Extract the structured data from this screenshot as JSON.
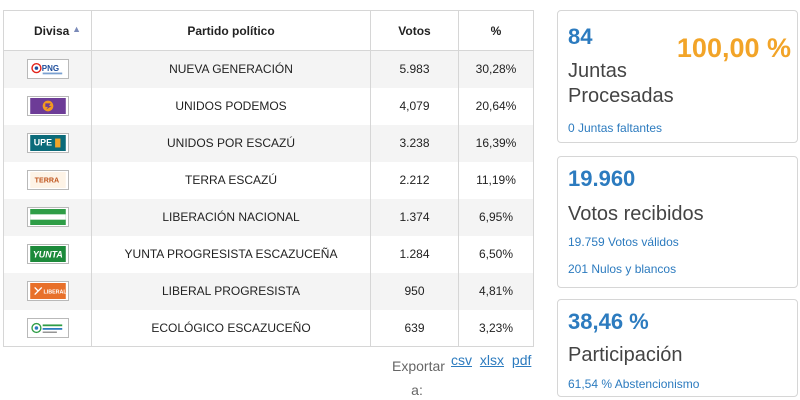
{
  "table": {
    "headers": {
      "divisa": "Divisa",
      "partido": "Partido político",
      "votos": "Votos",
      "pct": "%"
    },
    "rows": [
      {
        "logo": "png-logo",
        "partido": "NUEVA GENERACIÓN",
        "votos": "5.983",
        "pct": "30,28%"
      },
      {
        "logo": "up-logo",
        "partido": "UNIDOS PODEMOS",
        "votos": "4,079",
        "pct": "20,64%"
      },
      {
        "logo": "upe-logo",
        "partido": "UNIDOS POR ESCAZÚ",
        "votos": "3.238",
        "pct": "16,39%"
      },
      {
        "logo": "terra-logo",
        "partido": "TERRA ESCAZÚ",
        "votos": "2.212",
        "pct": "11,19%"
      },
      {
        "logo": "pln-flag-logo",
        "partido": "LIBERACIÓN NACIONAL",
        "votos": "1.374",
        "pct": "6,95%"
      },
      {
        "logo": "yunta-logo",
        "partido": "YUNTA PROGRESISTA ESCAZUCEÑA",
        "votos": "1.284",
        "pct": "6,50%"
      },
      {
        "logo": "liberal-logo",
        "partido": "LIBERAL PROGRESISTA",
        "votos": "950",
        "pct": "4,81%"
      },
      {
        "logo": "ecologico-logo",
        "partido": "ECOLÓGICO ESCAZUCEÑO",
        "votos": "639",
        "pct": "3,23%"
      }
    ]
  },
  "export": {
    "label": "Exportar a:",
    "links": [
      "csv",
      "xlsx",
      "pdf"
    ]
  },
  "juntas": {
    "value": "84",
    "percent": "100,00 %",
    "title": "Juntas Procesadas",
    "note": "0 Juntas faltantes"
  },
  "votos": {
    "value": "19.960",
    "title": "Votos recibidos",
    "valid": "19.759 Votos válidos",
    "null": "201 Nulos y blancos"
  },
  "participacion": {
    "value": "38,46 %",
    "title": "Participación",
    "note": "61,54 % Abstencionismo"
  },
  "colors": {
    "accent": "#2c7bbf",
    "orange": "#f2a428",
    "border": "#d6d6d6",
    "stripe": "#f4f4f4"
  }
}
